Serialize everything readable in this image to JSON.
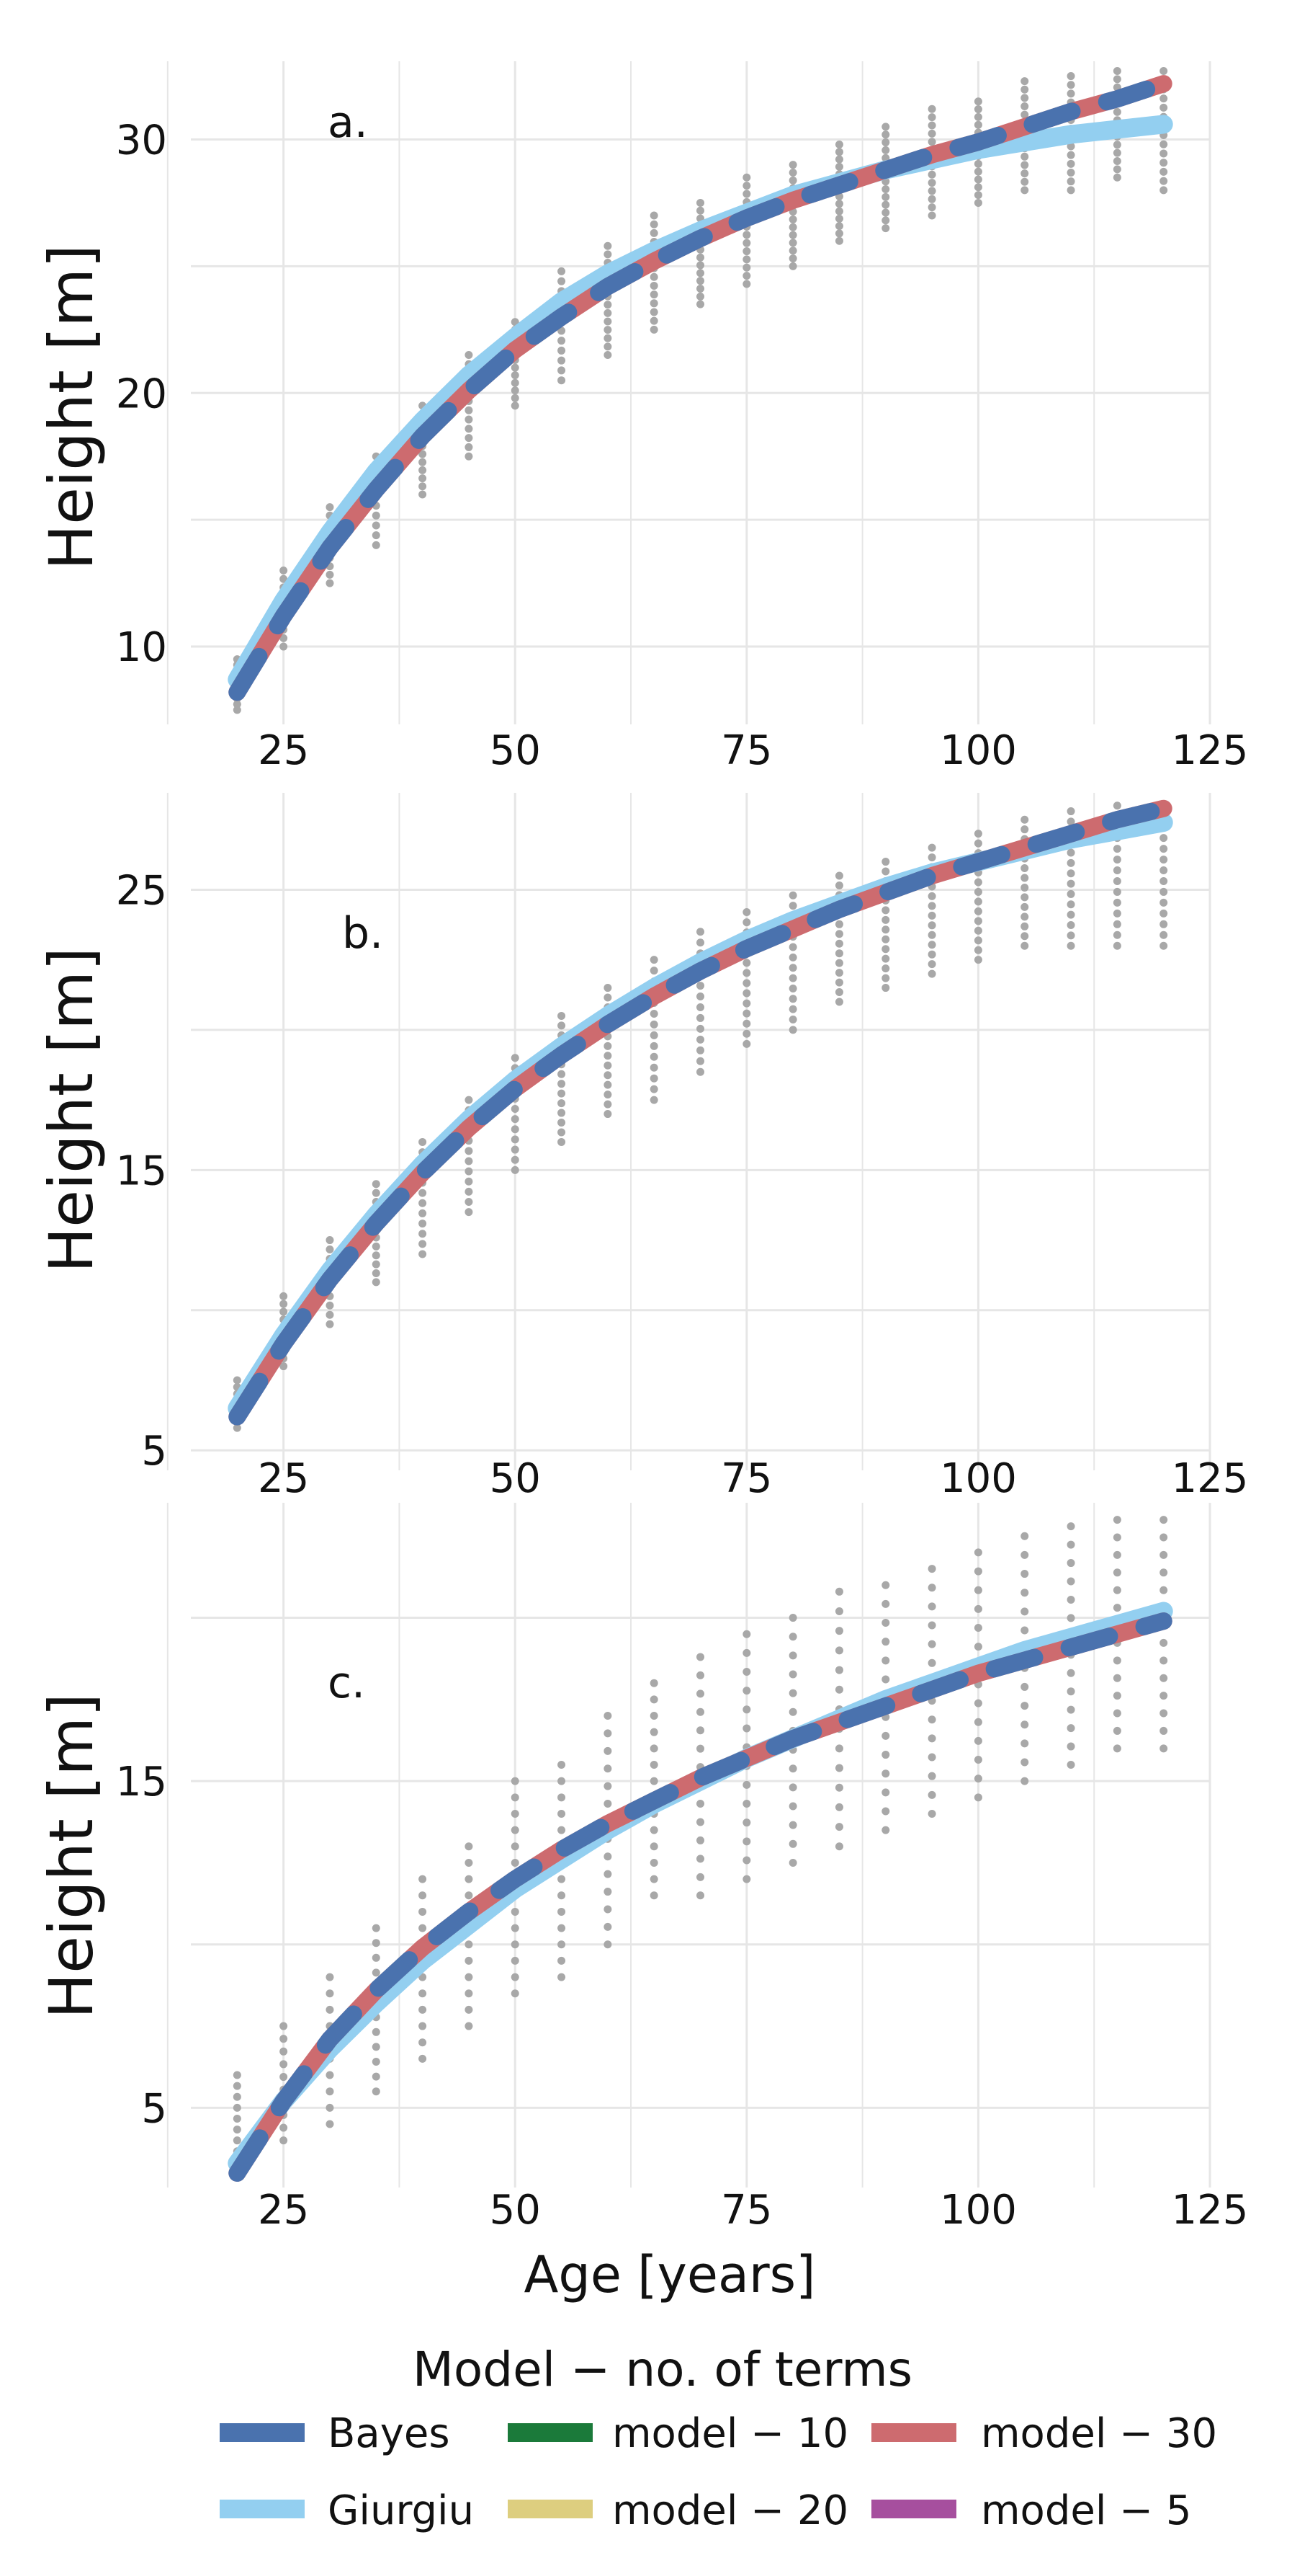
{
  "chart_data": [
    {
      "type": "line",
      "panel_label": "a.",
      "ylabel": "Height [m]",
      "xlabel": "",
      "x_ticks": [
        25,
        50,
        75,
        100,
        125
      ],
      "y_ticks": [
        10,
        20,
        30
      ],
      "xlim": [
        15,
        125
      ],
      "ylim": [
        7.5,
        32.8
      ],
      "grid": true,
      "x": [
        20,
        25,
        30,
        35,
        40,
        45,
        50,
        55,
        60,
        65,
        70,
        75,
        80,
        85,
        90,
        95,
        100,
        105,
        110,
        115,
        120
      ],
      "series": [
        {
          "name": "Giurgiu",
          "values": [
            8.7,
            11.8,
            14.5,
            16.9,
            18.9,
            20.7,
            22.2,
            23.6,
            24.7,
            25.6,
            26.4,
            27.1,
            27.8,
            28.3,
            28.8,
            29.2,
            29.6,
            29.9,
            30.2,
            30.4,
            30.6
          ]
        },
        {
          "name": "model - 30",
          "values": [
            8.2,
            11.2,
            13.9,
            16.2,
            18.3,
            20.1,
            21.7,
            23.0,
            24.2,
            25.2,
            26.1,
            26.9,
            27.6,
            28.2,
            28.8,
            29.4,
            29.9,
            30.5,
            31.1,
            31.6,
            32.2
          ]
        },
        {
          "name": "Bayes",
          "values": [
            8.2,
            11.2,
            13.9,
            16.2,
            18.3,
            20.1,
            21.7,
            23.0,
            24.2,
            25.2,
            26.1,
            26.9,
            27.6,
            28.2,
            28.8,
            29.4,
            29.9,
            30.5,
            31.1,
            31.6,
            32.2
          ]
        }
      ],
      "observations": [
        {
          "x": 20,
          "ymin": 7.5,
          "ymax": 9.5,
          "n": 10
        },
        {
          "x": 25,
          "ymin": 10.0,
          "ymax": 13.0,
          "n": 10
        },
        {
          "x": 30,
          "ymin": 12.5,
          "ymax": 15.5,
          "n": 10
        },
        {
          "x": 35,
          "ymin": 14.0,
          "ymax": 17.5,
          "n": 10
        },
        {
          "x": 40,
          "ymin": 16.0,
          "ymax": 19.5,
          "n": 12
        },
        {
          "x": 45,
          "ymin": 17.5,
          "ymax": 21.5,
          "n": 12
        },
        {
          "x": 50,
          "ymin": 19.5,
          "ymax": 22.8,
          "n": 12
        },
        {
          "x": 55,
          "ymin": 20.5,
          "ymax": 24.8,
          "n": 12
        },
        {
          "x": 60,
          "ymin": 21.5,
          "ymax": 25.8,
          "n": 14
        },
        {
          "x": 65,
          "ymin": 22.5,
          "ymax": 27.0,
          "n": 14
        },
        {
          "x": 70,
          "ymin": 23.5,
          "ymax": 27.5,
          "n": 14
        },
        {
          "x": 75,
          "ymin": 24.3,
          "ymax": 28.5,
          "n": 14
        },
        {
          "x": 80,
          "ymin": 25.0,
          "ymax": 29.0,
          "n": 14
        },
        {
          "x": 85,
          "ymin": 26.0,
          "ymax": 29.8,
          "n": 14
        },
        {
          "x": 90,
          "ymin": 26.5,
          "ymax": 30.5,
          "n": 14
        },
        {
          "x": 95,
          "ymin": 27.0,
          "ymax": 31.2,
          "n": 14
        },
        {
          "x": 100,
          "ymin": 27.5,
          "ymax": 31.5,
          "n": 14
        },
        {
          "x": 105,
          "ymin": 28.0,
          "ymax": 32.3,
          "n": 14
        },
        {
          "x": 110,
          "ymin": 28.0,
          "ymax": 32.5,
          "n": 14
        },
        {
          "x": 115,
          "ymin": 28.5,
          "ymax": 32.7,
          "n": 14
        },
        {
          "x": 120,
          "ymin": 28.0,
          "ymax": 32.7,
          "n": 14
        }
      ]
    },
    {
      "type": "line",
      "panel_label": "b.",
      "ylabel": "Height [m]",
      "xlabel": "",
      "x_ticks": [
        25,
        50,
        75,
        100,
        125
      ],
      "y_ticks": [
        5,
        15,
        25
      ],
      "xlim": [
        15,
        125
      ],
      "ylim": [
        4.8,
        28.2
      ],
      "grid": true,
      "x": [
        20,
        25,
        30,
        35,
        40,
        45,
        50,
        55,
        60,
        65,
        70,
        75,
        80,
        85,
        90,
        95,
        100,
        105,
        110,
        115,
        120
      ],
      "series": [
        {
          "name": "Giurgiu",
          "values": [
            6.5,
            9.1,
            11.4,
            13.4,
            15.2,
            16.8,
            18.2,
            19.4,
            20.5,
            21.5,
            22.4,
            23.2,
            23.9,
            24.5,
            25.1,
            25.6,
            26.0,
            26.4,
            26.8,
            27.1,
            27.4
          ]
        },
        {
          "name": "model - 30",
          "values": [
            6.2,
            8.8,
            11.1,
            13.1,
            14.9,
            16.5,
            17.9,
            19.1,
            20.2,
            21.2,
            22.1,
            22.9,
            23.6,
            24.3,
            24.9,
            25.5,
            26.0,
            26.5,
            27.0,
            27.5,
            27.9
          ]
        },
        {
          "name": "Bayes",
          "values": [
            6.2,
            8.8,
            11.1,
            13.1,
            14.9,
            16.5,
            17.9,
            19.1,
            20.2,
            21.2,
            22.1,
            22.9,
            23.6,
            24.3,
            24.9,
            25.5,
            26.0,
            26.5,
            27.0,
            27.5,
            27.9
          ]
        }
      ],
      "observations": [
        {
          "x": 20,
          "ymin": 5.8,
          "ymax": 7.5,
          "n": 8
        },
        {
          "x": 25,
          "ymin": 8.0,
          "ymax": 10.5,
          "n": 10
        },
        {
          "x": 30,
          "ymin": 9.5,
          "ymax": 12.5,
          "n": 10
        },
        {
          "x": 35,
          "ymin": 11.0,
          "ymax": 14.5,
          "n": 12
        },
        {
          "x": 40,
          "ymin": 12.0,
          "ymax": 16.0,
          "n": 12
        },
        {
          "x": 45,
          "ymin": 13.5,
          "ymax": 17.5,
          "n": 12
        },
        {
          "x": 50,
          "ymin": 15.0,
          "ymax": 19.0,
          "n": 12
        },
        {
          "x": 55,
          "ymin": 16.0,
          "ymax": 20.5,
          "n": 14
        },
        {
          "x": 60,
          "ymin": 17.0,
          "ymax": 21.5,
          "n": 14
        },
        {
          "x": 65,
          "ymin": 17.5,
          "ymax": 22.5,
          "n": 14
        },
        {
          "x": 70,
          "ymin": 18.5,
          "ymax": 23.5,
          "n": 14
        },
        {
          "x": 75,
          "ymin": 19.5,
          "ymax": 24.2,
          "n": 14
        },
        {
          "x": 80,
          "ymin": 20.0,
          "ymax": 24.8,
          "n": 14
        },
        {
          "x": 85,
          "ymin": 21.0,
          "ymax": 25.5,
          "n": 14
        },
        {
          "x": 90,
          "ymin": 21.5,
          "ymax": 26.0,
          "n": 14
        },
        {
          "x": 95,
          "ymin": 22.0,
          "ymax": 26.5,
          "n": 14
        },
        {
          "x": 100,
          "ymin": 22.5,
          "ymax": 27.0,
          "n": 14
        },
        {
          "x": 105,
          "ymin": 23.0,
          "ymax": 27.5,
          "n": 14
        },
        {
          "x": 110,
          "ymin": 23.0,
          "ymax": 27.8,
          "n": 14
        },
        {
          "x": 115,
          "ymin": 23.0,
          "ymax": 28.0,
          "n": 14
        },
        {
          "x": 120,
          "ymin": 23.0,
          "ymax": 28.0,
          "n": 14
        }
      ]
    },
    {
      "type": "line",
      "panel_label": "c.",
      "ylabel": "Height [m]",
      "xlabel": "Age [years]",
      "x_ticks": [
        25,
        50,
        75,
        100,
        125
      ],
      "y_ticks": [
        5,
        15
      ],
      "xlim": [
        15,
        125
      ],
      "ylim": [
        3.0,
        23.3
      ],
      "grid": true,
      "x": [
        20,
        25,
        30,
        35,
        40,
        45,
        50,
        55,
        60,
        65,
        70,
        75,
        80,
        85,
        90,
        95,
        100,
        105,
        110,
        115,
        120
      ],
      "series": [
        {
          "name": "Giurgiu",
          "values": [
            3.3,
            5.2,
            6.8,
            8.2,
            9.5,
            10.6,
            11.7,
            12.6,
            13.5,
            14.3,
            15.0,
            15.7,
            16.3,
            16.9,
            17.5,
            18.0,
            18.5,
            19.0,
            19.4,
            19.8,
            20.2
          ]
        },
        {
          "name": "model - 30",
          "values": [
            3.0,
            5.2,
            7.1,
            8.6,
            9.9,
            11.0,
            12.0,
            12.9,
            13.7,
            14.4,
            15.1,
            15.7,
            16.3,
            16.8,
            17.3,
            17.8,
            18.3,
            18.7,
            19.1,
            19.5,
            19.9
          ]
        },
        {
          "name": "Bayes",
          "values": [
            3.0,
            5.2,
            7.1,
            8.6,
            9.9,
            11.0,
            12.0,
            12.9,
            13.7,
            14.4,
            15.1,
            15.7,
            16.3,
            16.8,
            17.3,
            17.8,
            18.3,
            18.7,
            19.1,
            19.5,
            19.9
          ]
        }
      ],
      "observations": [
        {
          "x": 20,
          "ymin": 3.0,
          "ymax": 6.0,
          "n": 10
        },
        {
          "x": 25,
          "ymin": 4.0,
          "ymax": 7.5,
          "n": 10
        },
        {
          "x": 30,
          "ymin": 4.5,
          "ymax": 9.0,
          "n": 10
        },
        {
          "x": 35,
          "ymin": 5.5,
          "ymax": 10.5,
          "n": 12
        },
        {
          "x": 40,
          "ymin": 6.5,
          "ymax": 12.0,
          "n": 12
        },
        {
          "x": 45,
          "ymin": 7.5,
          "ymax": 13.0,
          "n": 12
        },
        {
          "x": 50,
          "ymin": 8.5,
          "ymax": 15.0,
          "n": 14
        },
        {
          "x": 55,
          "ymin": 9.0,
          "ymax": 15.5,
          "n": 14
        },
        {
          "x": 60,
          "ymin": 10.0,
          "ymax": 17.0,
          "n": 14
        },
        {
          "x": 65,
          "ymin": 11.5,
          "ymax": 18.0,
          "n": 14
        },
        {
          "x": 70,
          "ymin": 11.5,
          "ymax": 18.8,
          "n": 14
        },
        {
          "x": 75,
          "ymin": 12.0,
          "ymax": 19.5,
          "n": 14
        },
        {
          "x": 80,
          "ymin": 12.5,
          "ymax": 20.0,
          "n": 14
        },
        {
          "x": 85,
          "ymin": 13.0,
          "ymax": 20.8,
          "n": 14
        },
        {
          "x": 90,
          "ymin": 13.5,
          "ymax": 21.0,
          "n": 14
        },
        {
          "x": 95,
          "ymin": 14.0,
          "ymax": 21.5,
          "n": 14
        },
        {
          "x": 100,
          "ymin": 14.5,
          "ymax": 22.0,
          "n": 14
        },
        {
          "x": 105,
          "ymin": 15.0,
          "ymax": 22.5,
          "n": 14
        },
        {
          "x": 110,
          "ymin": 15.5,
          "ymax": 22.8,
          "n": 14
        },
        {
          "x": 115,
          "ymin": 16.0,
          "ymax": 23.0,
          "n": 14
        },
        {
          "x": 120,
          "ymin": 16.0,
          "ymax": 23.0,
          "n": 14
        }
      ]
    }
  ],
  "legend": {
    "title": "Model − no. of terms",
    "items": [
      {
        "label": "Bayes",
        "color": "#4A72AE"
      },
      {
        "label": "model − 10",
        "color": "#1B7A3A"
      },
      {
        "label": "model − 30",
        "color": "#CD6B6F"
      },
      {
        "label": "Giurgiu",
        "color": "#93CFF0"
      },
      {
        "label": "model − 20",
        "color": "#DDCE7F"
      },
      {
        "label": "model − 5",
        "color": "#A64F9E"
      }
    ]
  },
  "colors": {
    "bayes": "#4A72AE",
    "giurgiu": "#93CFF0",
    "model_30": "#CD6B6F",
    "observations": "#A8A8A8",
    "grid": "#E6E6E6"
  }
}
